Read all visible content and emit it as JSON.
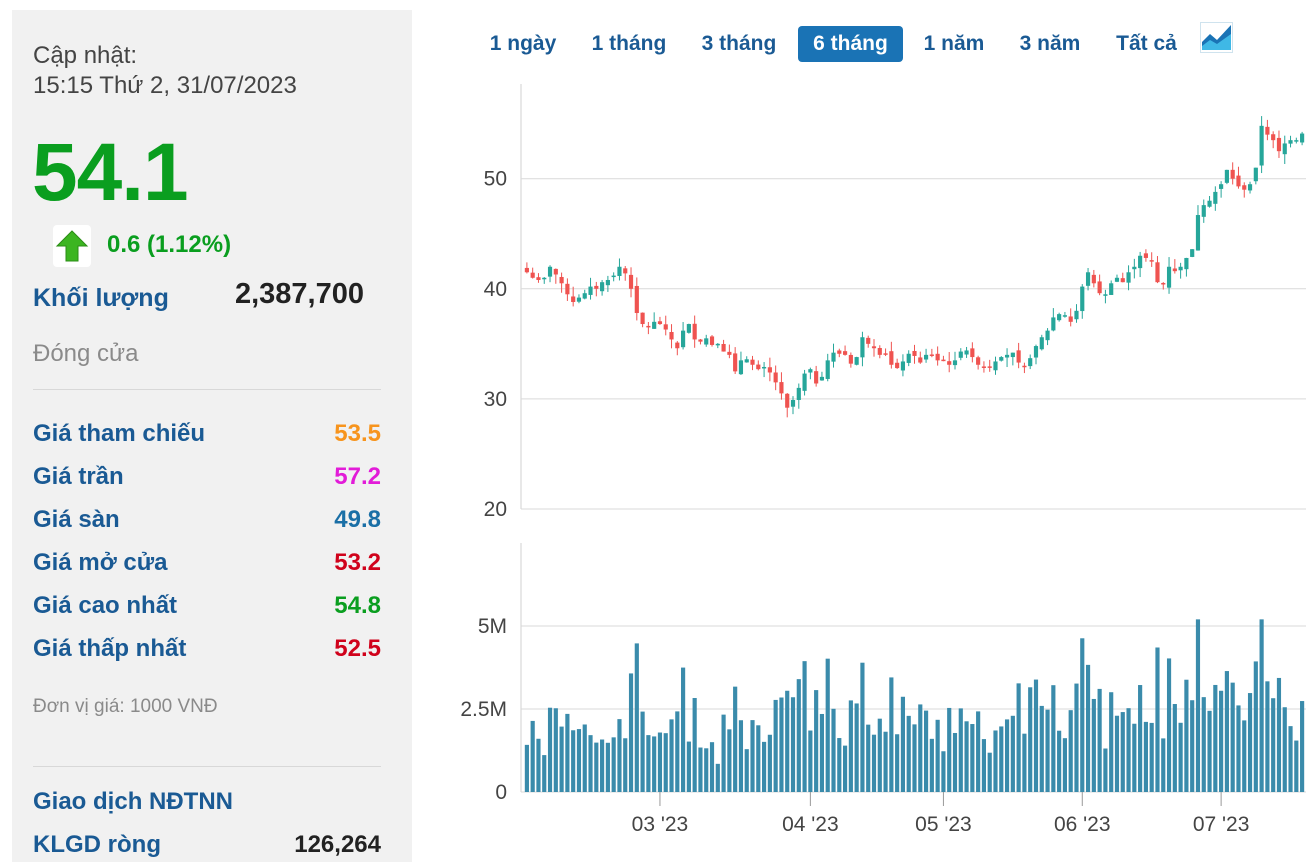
{
  "panel": {
    "update_label": "Cập nhật:",
    "update_time": "15:15 Thứ 2, 31/07/2023",
    "price": "54.1",
    "change": "0.6 (1.12%)",
    "volume_label": "Khối lượng",
    "volume_value": "2,387,700",
    "status": "Đóng cửa",
    "rows": [
      {
        "label": "Giá tham chiếu",
        "value": "53.5",
        "color": "#f7941d"
      },
      {
        "label": "Giá trần",
        "value": "57.2",
        "color": "#e21cd8"
      },
      {
        "label": "Giá sàn",
        "value": "49.8",
        "color": "#1a6fa6"
      },
      {
        "label": "Giá mở cửa",
        "value": "53.2",
        "color": "#d0021b"
      },
      {
        "label": "Giá cao nhất",
        "value": "54.8",
        "color": "#0a9e1f"
      },
      {
        "label": "Giá thấp nhất",
        "value": "52.5",
        "color": "#d0021b"
      }
    ],
    "unit_note": "Đơn vị giá: 1000 VNĐ",
    "foreign_label": "Giao dịch NĐTNN",
    "net_label": "KLGD ròng",
    "net_value": "126,264",
    "up_color": "#0a9e1f"
  },
  "tabs": [
    {
      "label": "1 ngày",
      "active": false
    },
    {
      "label": "1 tháng",
      "active": false
    },
    {
      "label": "3 tháng",
      "active": false
    },
    {
      "label": "6 tháng",
      "active": true
    },
    {
      "label": "1 năm",
      "active": false
    },
    {
      "label": "3 năm",
      "active": false
    },
    {
      "label": "Tất cả",
      "active": false
    }
  ],
  "chart_icon": "area-chart-icon",
  "chart_data": {
    "type": "candlestick",
    "up_color": "#26a69a",
    "down_color": "#ef5350",
    "volume_color": "#3a8bab",
    "price_axis": {
      "ticks": [
        20,
        30,
        40,
        50
      ],
      "ylim": [
        20,
        58.6
      ]
    },
    "volume_axis": {
      "ticks": [
        "0",
        "2.5M",
        "5M"
      ],
      "tick_values": [
        0,
        2500000,
        5000000
      ],
      "ylim": [
        0,
        7500000
      ]
    },
    "x_ticks": [
      {
        "label": "03 '23",
        "index": 23
      },
      {
        "label": "04 '23",
        "index": 49
      },
      {
        "label": "05 '23",
        "index": 72
      },
      {
        "label": "06 '23",
        "index": 96
      },
      {
        "label": "07 '23",
        "index": 120
      }
    ],
    "close": [
      41.5,
      41.0,
      40.8,
      41.0,
      42.0,
      41.3,
      40.5,
      39.5,
      38.8,
      39.2,
      39.6,
      40.2,
      40.0,
      40.6,
      40.8,
      41.2,
      42.0,
      41.4,
      40.0,
      37.8,
      36.8,
      36.5,
      37.0,
      36.8,
      36.3,
      35.4,
      34.6,
      36.2,
      36.8,
      35.4,
      35.2,
      35.5,
      34.9,
      35.0,
      34.3,
      34.0,
      32.5,
      33.5,
      33.6,
      33.1,
      32.7,
      32.9,
      32.4,
      31.5,
      30.5,
      29.2,
      29.9,
      31.0,
      32.3,
      32.7,
      31.4,
      32.0,
      33.5,
      34.2,
      34.1,
      34.0,
      33.2,
      33.8,
      35.6,
      35.0,
      34.6,
      34.0,
      34.1,
      33.1,
      32.8,
      33.4,
      34.1,
      33.9,
      33.3,
      34.0,
      33.9,
      33.5,
      33.5,
      33.1,
      33.5,
      34.3,
      34.4,
      33.8,
      33.1,
      32.9,
      32.9,
      33.4,
      33.8,
      34.0,
      34.2,
      33.3,
      32.9,
      33.7,
      34.8,
      35.6,
      36.2,
      37.4,
      37.7,
      37.6,
      37.0,
      38.0,
      40.2,
      41.5,
      40.5,
      39.6,
      39.5,
      40.5,
      41.0,
      40.6,
      41.5,
      42.0,
      43.0,
      42.8,
      42.5,
      40.6,
      40.4,
      42.0,
      41.6,
      42.0,
      42.8,
      43.6,
      46.7,
      47.6,
      48.0,
      48.8,
      49.5,
      50.8,
      50.0,
      49.3,
      49.0,
      49.5,
      51.0,
      54.8,
      54.0,
      53.5,
      52.5,
      53.2,
      53.5,
      53.5,
      54.1
    ]
  }
}
